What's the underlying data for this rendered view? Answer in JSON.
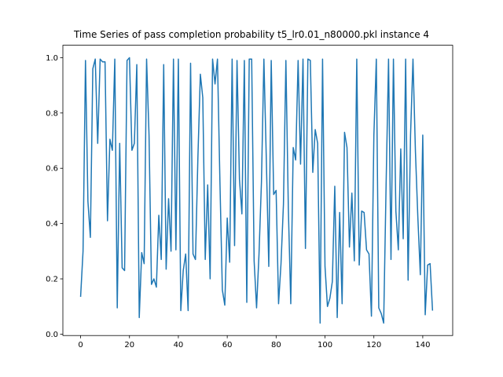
{
  "chart_data": {
    "type": "line",
    "title": "Time Series of pass completion probability t5_lr0.01_n80000.pkl instance 4",
    "xlabel": "",
    "ylabel": "",
    "xlim": [
      -7.25,
      152.25
    ],
    "ylim": [
      -0.005,
      1.045
    ],
    "xticks": [
      0,
      20,
      40,
      60,
      80,
      100,
      120,
      140
    ],
    "yticks": [
      0.0,
      0.2,
      0.4,
      0.6,
      0.8,
      1.0
    ],
    "xtick_labels": [
      "0",
      "20",
      "40",
      "60",
      "80",
      "100",
      "120",
      "140"
    ],
    "ytick_labels": [
      "0.0",
      "0.2",
      "0.4",
      "0.6",
      "0.8",
      "1.0"
    ],
    "grid": false,
    "series": [
      {
        "color": "#1f77b4",
        "x_start": 0,
        "x_step": 1,
        "values": [
          0.135,
          0.3,
          0.99,
          0.48,
          0.35,
          0.96,
          0.995,
          0.69,
          0.995,
          0.985,
          0.985,
          0.41,
          0.705,
          0.665,
          0.995,
          0.095,
          0.69,
          0.24,
          0.23,
          0.99,
          1.0,
          0.665,
          0.69,
          0.975,
          0.06,
          0.295,
          0.255,
          0.995,
          0.72,
          0.18,
          0.2,
          0.17,
          0.43,
          0.27,
          0.975,
          0.235,
          0.49,
          0.3,
          0.995,
          0.305,
          0.995,
          0.085,
          0.23,
          0.29,
          0.085,
          0.98,
          0.29,
          0.27,
          0.64,
          0.94,
          0.855,
          0.27,
          0.54,
          0.2,
          0.995,
          0.905,
          0.995,
          0.555,
          0.16,
          0.105,
          0.42,
          0.26,
          0.995,
          0.32,
          0.99,
          0.56,
          0.435,
          0.99,
          0.115,
          0.995,
          0.995,
          0.265,
          0.095,
          0.29,
          0.55,
          0.995,
          0.63,
          0.245,
          0.99,
          0.505,
          0.52,
          0.11,
          0.255,
          0.47,
          0.99,
          0.455,
          0.11,
          0.675,
          0.63,
          0.99,
          0.615,
          0.995,
          0.31,
          0.995,
          0.99,
          0.585,
          0.74,
          0.69,
          0.04,
          0.995,
          0.245,
          0.1,
          0.13,
          0.19,
          0.535,
          0.06,
          0.44,
          0.11,
          0.73,
          0.675,
          0.315,
          0.51,
          0.265,
          0.995,
          0.25,
          0.445,
          0.44,
          0.305,
          0.29,
          0.065,
          0.72,
          0.995,
          0.095,
          0.075,
          0.04,
          0.54,
          0.995,
          0.27,
          0.995,
          0.445,
          0.305,
          0.67,
          0.345,
          0.995,
          0.195,
          0.72,
          0.995,
          0.66,
          0.42,
          0.215,
          0.72,
          0.07,
          0.25,
          0.255,
          0.085
        ]
      }
    ]
  }
}
